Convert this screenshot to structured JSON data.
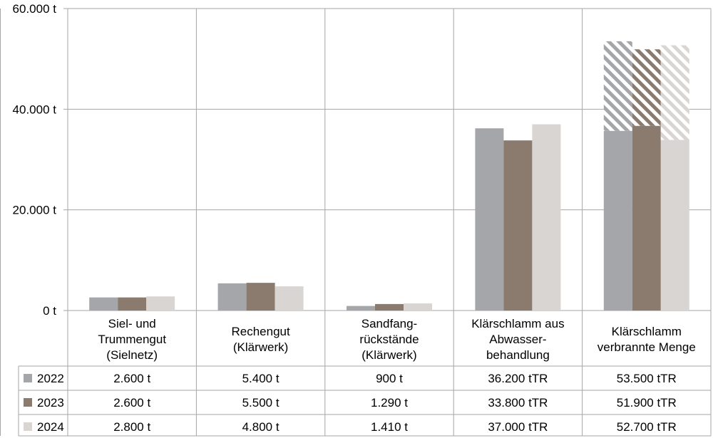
{
  "chart_data": {
    "type": "bar",
    "title": "",
    "xlabel": "",
    "ylabel": "",
    "ylim": [
      0,
      60000
    ],
    "y_ticks": [
      {
        "value": 0,
        "label": "0 t"
      },
      {
        "value": 20000,
        "label": "20.000 t"
      },
      {
        "value": 40000,
        "label": "40.000 t"
      },
      {
        "value": 60000,
        "label": "60.000 t"
      }
    ],
    "grid": true,
    "legend": "data-table",
    "categories": [
      [
        "Siel- und",
        "Trummengut",
        "(Sielnetz)"
      ],
      [
        "Rechengut",
        "(Klärwerk)"
      ],
      [
        "Sandfang-",
        "rückstände",
        "(Klärwerk)"
      ],
      [
        "Klärschlamm aus",
        "Abwasser-",
        "behandlung"
      ],
      [
        "Klärschlamm",
        "verbrannte Menge"
      ]
    ],
    "series": [
      {
        "name": "2022",
        "color": "#a5a6aa",
        "values": [
          2600,
          5400,
          900,
          36200,
          53500
        ],
        "solid_portion_last": 35700,
        "labels": [
          "2.600 t",
          "5.400 t",
          "900 t",
          "36.200 tTR",
          "53.500 tTR"
        ]
      },
      {
        "name": "2023",
        "color": "#8b7b6e",
        "values": [
          2600,
          5500,
          1290,
          33800,
          51900
        ],
        "solid_portion_last": 36700,
        "labels": [
          "2.600 t",
          "5.500 t",
          "1.290 t",
          "33.800 tTR",
          "51.900 tTR"
        ]
      },
      {
        "name": "2024",
        "color": "#d9d5d2",
        "values": [
          2800,
          4800,
          1410,
          37000,
          52700
        ],
        "solid_portion_last": 33900,
        "labels": [
          "2.800 t",
          "4.800 t",
          "1.410 t",
          "37.000 tTR",
          "52.700 tTR"
        ]
      }
    ]
  }
}
